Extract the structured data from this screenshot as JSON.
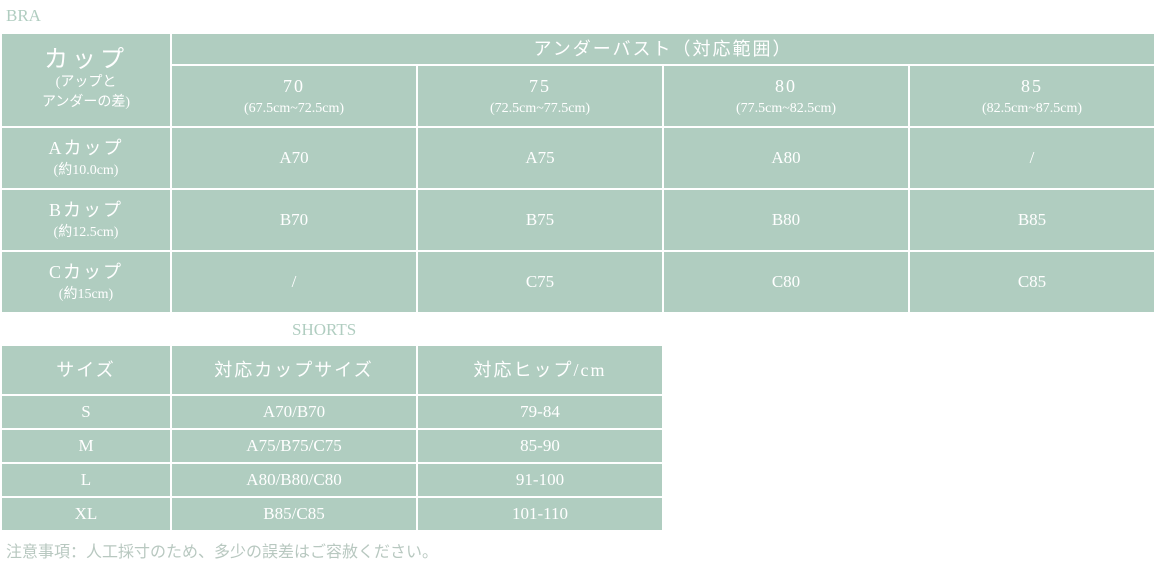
{
  "bra": {
    "title": "BRA",
    "corner": {
      "main": "カップ",
      "sub1": "(アップと",
      "sub2": "アンダーの差)"
    },
    "header": "アンダーバスト（対応範囲）",
    "columns": [
      {
        "size": "70",
        "range": "(67.5cm~72.5cm)"
      },
      {
        "size": "75",
        "range": "(72.5cm~77.5cm)"
      },
      {
        "size": "80",
        "range": "(77.5cm~82.5cm)"
      },
      {
        "size": "85",
        "range": "(82.5cm~87.5cm)"
      }
    ],
    "rows": [
      {
        "cup": "Aカップ",
        "diff": "(約10.0cm)",
        "values": [
          "A70",
          "A75",
          "A80",
          "/"
        ]
      },
      {
        "cup": "Bカップ",
        "diff": "(約12.5cm)",
        "values": [
          "B70",
          "B75",
          "B80",
          "B85"
        ]
      },
      {
        "cup": "Cカップ",
        "diff": "(約15cm)",
        "values": [
          "/",
          "C75",
          "C80",
          "C85"
        ]
      }
    ]
  },
  "shorts": {
    "title": "SHORTS",
    "headers": [
      "サイズ",
      "対応カップサイズ",
      "対応ヒップ/cm"
    ],
    "rows": [
      [
        "S",
        "A70/B70",
        "79-84"
      ],
      [
        "M",
        "A75/B75/C75",
        "85-90"
      ],
      [
        "L",
        "A80/B80/C80",
        "91-100"
      ],
      [
        "XL",
        "B85/C85",
        "101-110"
      ]
    ]
  },
  "note": "注意事項：人工採寸のため、多少の誤差はご容赦ください。",
  "colors": {
    "cell": "#b0cdc0",
    "text": "#ffffff"
  }
}
